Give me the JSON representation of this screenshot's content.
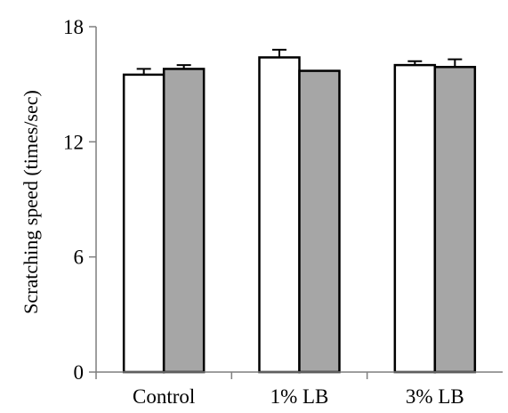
{
  "chart_data": {
    "type": "bar",
    "title": "",
    "xlabel": "",
    "ylabel": "Scratching speed (times/sec)",
    "ylim": [
      0,
      18
    ],
    "yticks": [
      0,
      6,
      12,
      18
    ],
    "grid": false,
    "categories": [
      "Control",
      "1% LB",
      "3% LB"
    ],
    "series": [
      {
        "color": "#ffffff",
        "values": [
          15.5,
          16.4,
          16.0
        ],
        "errors": [
          0.3,
          0.4,
          0.2
        ]
      },
      {
        "color": "#a6a6a6",
        "values": [
          15.8,
          15.7,
          15.9
        ],
        "errors": [
          0.2,
          0.0,
          0.4
        ]
      }
    ]
  }
}
